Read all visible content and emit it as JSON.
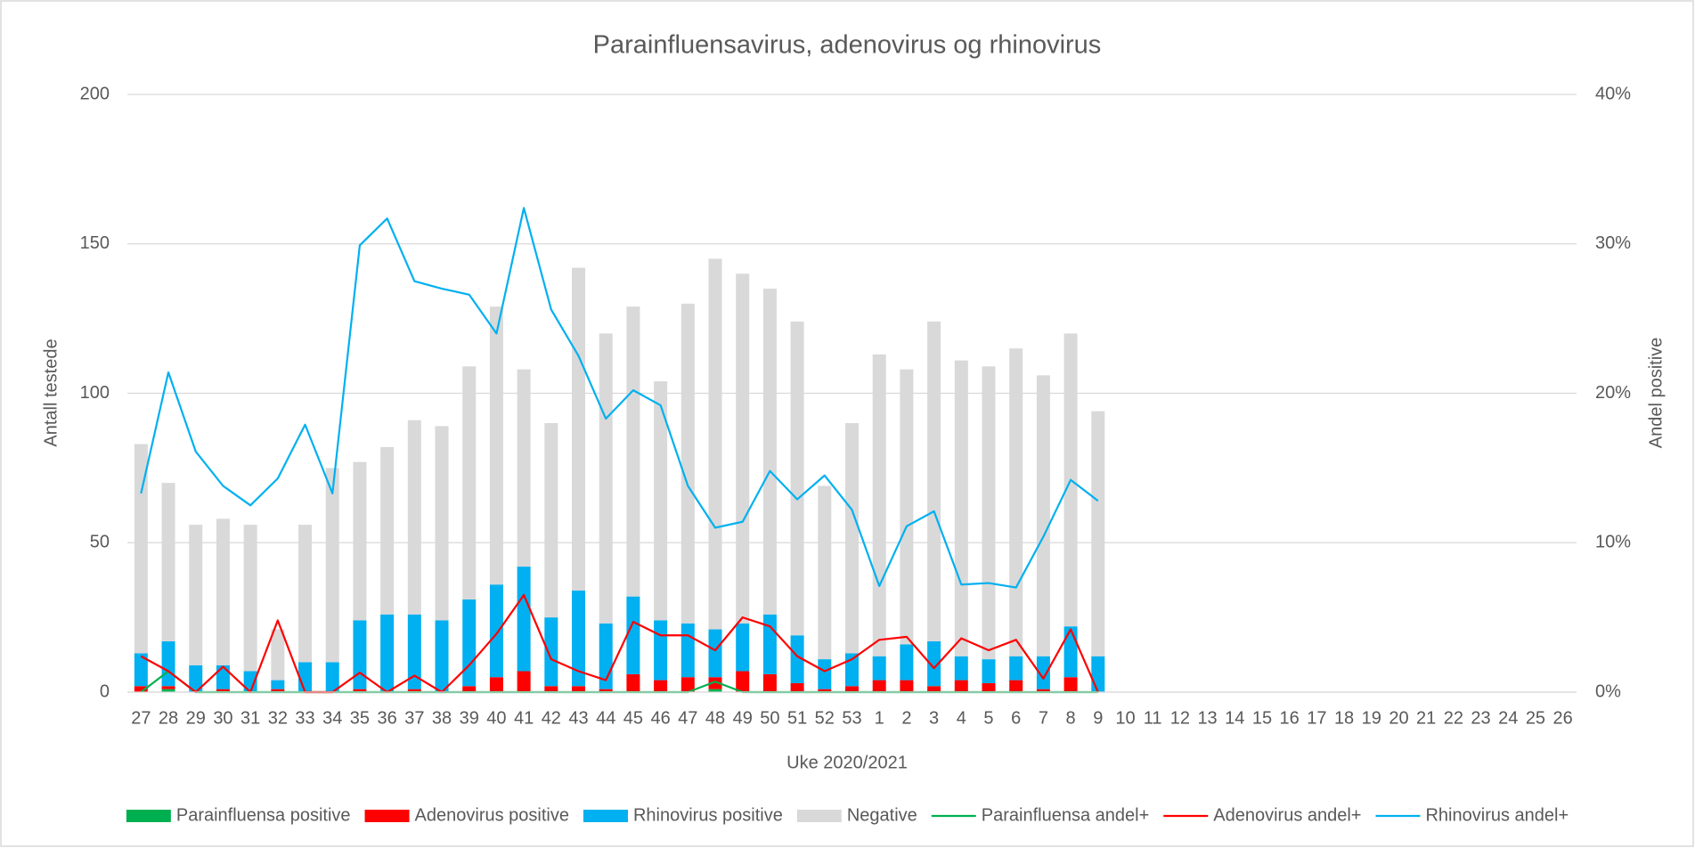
{
  "chart_data": {
    "type": "bar",
    "title": "Parainfluensavirus, adenovirus og rhinovirus",
    "x_label": "Uke 2020/2021",
    "y_label": "Antall testede",
    "y2_label": "Andel positive",
    "categories": [
      "27",
      "28",
      "29",
      "30",
      "31",
      "32",
      "33",
      "34",
      "35",
      "36",
      "37",
      "38",
      "39",
      "40",
      "41",
      "42",
      "43",
      "44",
      "45",
      "46",
      "47",
      "48",
      "49",
      "50",
      "51",
      "52",
      "53",
      "1",
      "2",
      "3",
      "4",
      "5",
      "6",
      "7",
      "8",
      "9",
      "10",
      "11",
      "12",
      "13",
      "14",
      "15",
      "16",
      "17",
      "18",
      "19",
      "20",
      "21",
      "22",
      "23",
      "24",
      "25",
      "26"
    ],
    "ylim": [
      0,
      200
    ],
    "yticks": [
      0,
      50,
      100,
      150,
      200
    ],
    "y2lim": [
      0,
      40
    ],
    "y2ticks": [
      {
        "value": 0,
        "label": "0%"
      },
      {
        "value": 10,
        "label": "10%"
      },
      {
        "value": 20,
        "label": "20%"
      },
      {
        "value": 30,
        "label": "30%"
      },
      {
        "value": 40,
        "label": "40%"
      }
    ],
    "grid": true,
    "legend": "bottom",
    "series": [
      {
        "name": "Parainfluensa positive",
        "type": "bar",
        "color": "#00b050",
        "values": [
          0,
          1,
          0,
          0,
          0,
          0,
          0,
          0,
          0,
          0,
          0,
          0,
          0,
          0,
          0,
          0,
          0,
          0,
          0,
          0,
          0,
          1,
          0,
          0,
          0,
          0,
          0,
          0,
          0,
          0,
          0,
          0,
          0,
          0,
          0,
          0,
          null,
          null,
          null,
          null,
          null,
          null,
          null,
          null,
          null,
          null,
          null,
          null,
          null,
          null,
          null,
          null,
          null
        ]
      },
      {
        "name": "Adenovirus positive",
        "type": "bar",
        "color": "#ff0000",
        "values": [
          2,
          1,
          0,
          1,
          0,
          1,
          0,
          0,
          1,
          0,
          1,
          0,
          2,
          5,
          7,
          2,
          2,
          1,
          6,
          4,
          5,
          4,
          7,
          6,
          3,
          1,
          2,
          4,
          4,
          2,
          4,
          3,
          4,
          1,
          5,
          0,
          null,
          null,
          null,
          null,
          null,
          null,
          null,
          null,
          null,
          null,
          null,
          null,
          null,
          null,
          null,
          null,
          null
        ]
      },
      {
        "name": "Rhinovirus positive",
        "type": "bar",
        "color": "#00b0f0",
        "values": [
          11,
          15,
          9,
          8,
          7,
          3,
          10,
          10,
          23,
          26,
          25,
          24,
          29,
          31,
          35,
          23,
          32,
          22,
          26,
          20,
          18,
          16,
          16,
          20,
          16,
          10,
          11,
          8,
          12,
          15,
          8,
          8,
          8,
          11,
          17,
          12,
          null,
          null,
          null,
          null,
          null,
          null,
          null,
          null,
          null,
          null,
          null,
          null,
          null,
          null,
          null,
          null,
          null
        ]
      },
      {
        "name": "Negative",
        "type": "bar",
        "color": "#d9d9d9",
        "values": [
          70,
          53,
          47,
          49,
          49,
          17,
          46,
          65,
          53,
          56,
          65,
          65,
          78,
          93,
          66,
          65,
          108,
          97,
          97,
          80,
          107,
          124,
          117,
          109,
          105,
          58,
          77,
          101,
          92,
          107,
          99,
          98,
          103,
          94,
          98,
          82,
          null,
          null,
          null,
          null,
          null,
          null,
          null,
          null,
          null,
          null,
          null,
          null,
          null,
          null,
          null,
          null,
          null
        ]
      },
      {
        "name": "Parainfluensa andel+",
        "type": "line",
        "axis": "y2",
        "color": "#00b050",
        "values": [
          0,
          1.4,
          0,
          0,
          0,
          0,
          0,
          0,
          0,
          0,
          0,
          0,
          0,
          0,
          0,
          0,
          0,
          0,
          0,
          0,
          0,
          0.7,
          0,
          0,
          0,
          0,
          0,
          0,
          0,
          0,
          0,
          0,
          0,
          0,
          0,
          0,
          null,
          null,
          null,
          null,
          null,
          null,
          null,
          null,
          null,
          null,
          null,
          null,
          null,
          null,
          null,
          null,
          null
        ]
      },
      {
        "name": "Adenovirus andel+",
        "type": "line",
        "axis": "y2",
        "color": "#ff0000",
        "values": [
          2.4,
          1.4,
          0,
          1.7,
          0,
          4.8,
          0,
          0,
          1.3,
          0,
          1.1,
          0,
          1.8,
          3.9,
          6.5,
          2.2,
          1.4,
          0.8,
          4.7,
          3.8,
          3.8,
          2.8,
          5.0,
          4.4,
          2.4,
          1.4,
          2.2,
          3.5,
          3.7,
          1.6,
          3.6,
          2.8,
          3.5,
          0.9,
          4.2,
          0,
          null,
          null,
          null,
          null,
          null,
          null,
          null,
          null,
          null,
          null,
          null,
          null,
          null,
          null,
          null,
          null,
          null
        ]
      },
      {
        "name": "Rhinovirus andel+",
        "type": "line",
        "axis": "y2",
        "color": "#00b0f0",
        "values": [
          13.3,
          21.4,
          16.1,
          13.8,
          12.5,
          14.3,
          17.9,
          13.3,
          29.9,
          31.7,
          27.5,
          27.0,
          26.6,
          24.0,
          32.4,
          25.6,
          22.5,
          18.3,
          20.2,
          19.2,
          13.8,
          11.0,
          11.4,
          14.8,
          12.9,
          14.5,
          12.2,
          7.1,
          11.1,
          12.1,
          7.2,
          7.3,
          7.0,
          10.4,
          14.2,
          12.8,
          null,
          null,
          null,
          null,
          null,
          null,
          null,
          null,
          null,
          null,
          null,
          null,
          null,
          null,
          null,
          null,
          null
        ]
      }
    ]
  }
}
